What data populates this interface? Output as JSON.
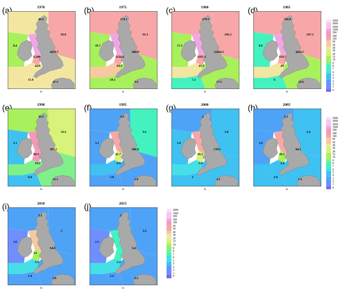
{
  "colors": {
    "land": "#a9a9a9",
    "scale": [
      "#7b68ee",
      "#6f8fff",
      "#4fa3f7",
      "#3fc1f2",
      "#45dfe8",
      "#44f2c0",
      "#7ff08a",
      "#a8f05c",
      "#d8f27a",
      "#f2e6a0",
      "#f6caa0",
      "#f7a7a7",
      "#f49ab6",
      "#f0a6e6",
      "#f6c6f1",
      "#fbe2f7"
    ]
  },
  "colorbar_a": [
    "5000",
    "3000",
    "2000",
    "1000",
    "500",
    "300",
    "100",
    "60",
    "50",
    "40",
    "30",
    "20",
    "15",
    "10",
    "9",
    "8",
    "7",
    "6",
    "5",
    "4",
    "3",
    "2",
    "1",
    "0"
  ],
  "colorbar_b": [
    "5000",
    "3000",
    "2000",
    "1000",
    "500",
    "300",
    "100",
    "60",
    "50",
    "40",
    "30",
    "20",
    "15",
    "10",
    "9",
    "8",
    "7",
    "6",
    "5",
    "4",
    "3",
    "2",
    "1",
    "0"
  ],
  "colorbar_c": [
    "2000",
    "1000",
    "500",
    "300",
    "100",
    "60",
    "50",
    "40",
    "30",
    "20",
    "15",
    "10",
    "9",
    "8",
    "7",
    "6",
    "5",
    "4",
    "3",
    "2",
    "1",
    "0"
  ],
  "panels": [
    {
      "letter": "(a)",
      "year": "1970",
      "values": [
        "46.3",
        "92.8",
        "8.4",
        "4418.7",
        "6,260",
        "44.9",
        "11.9",
        "47.3"
      ]
    },
    {
      "letter": "(b)",
      "year": "1975",
      "values": [
        "174.1",
        "61.3",
        "19.7",
        "26047",
        "1224.6",
        "84.3",
        "29.3",
        "9.5"
      ]
    },
    {
      "letter": "(c)",
      "year": "1980",
      "values": [
        "279.3",
        "293.3",
        "17.3",
        "12464.3",
        "1457.3",
        "43.3",
        "7.2",
        "17.3"
      ]
    },
    {
      "letter": "(d)",
      "year": "1985",
      "values": [
        "116.8",
        "107.3",
        "8.6",
        "4424.7",
        "635.7",
        "49",
        "6",
        "22.6"
      ]
    },
    {
      "letter": "(e)",
      "year": "1990",
      "values": [
        "16.5",
        "33.2",
        "3.1",
        "597.2",
        "96.3",
        "10.5",
        "6.8",
        "15.1"
      ]
    },
    {
      "letter": "(f)",
      "year": "1995",
      "values": [
        "2.9",
        "9.5",
        "3.1",
        "160.8",
        "41.7",
        "6.6",
        "3.8",
        "1.9"
      ]
    },
    {
      "letter": "(g)",
      "year": "2000",
      "values": [
        "2",
        "3.9",
        "1.9",
        "178.5",
        "26.3",
        "2.8",
        "2",
        "3.3"
      ]
    },
    {
      "letter": "(h)",
      "year": "2005",
      "values": [
        "3.2",
        "3.4",
        "1.9",
        "94.1",
        "26.1",
        "2.6",
        "2.9",
        "1.5"
      ]
    },
    {
      "letter": "(i)",
      "year": "2010",
      "values": [
        "2.1",
        "2",
        "1.6",
        "54.6",
        "14",
        "3.5",
        "1.9",
        "2.6"
      ]
    },
    {
      "letter": "(j)",
      "year": "2015",
      "values": [
        "2",
        "2.2",
        "1.3",
        "5.4",
        "",
        "2.2",
        "2.5",
        "2.2"
      ]
    }
  ],
  "tick_label": "lo"
}
